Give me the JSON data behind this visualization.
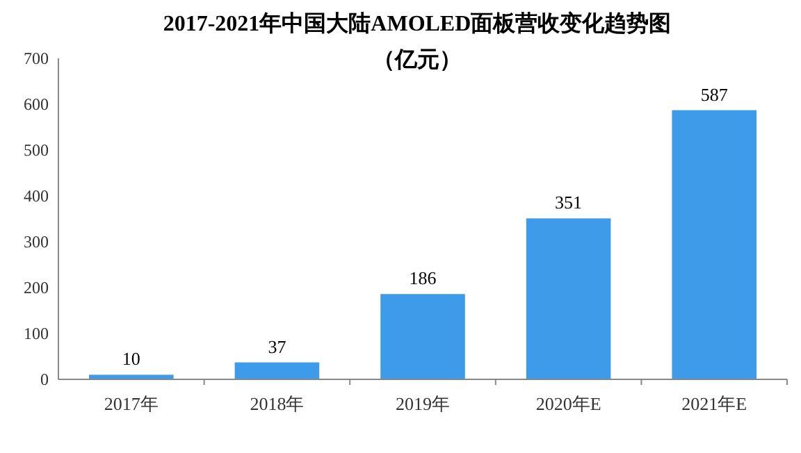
{
  "chart_data": {
    "type": "bar",
    "title": "2017-2021年中国大陆AMOLED面板营收变化趋势图",
    "subtitle": "（亿元）",
    "categories": [
      "2017年",
      "2018年",
      "2019年",
      "2020年E",
      "2021年E"
    ],
    "values": [
      10,
      37,
      186,
      351,
      587
    ],
    "color": "#3d9be9",
    "ylim": [
      0,
      700
    ],
    "yticks": [
      0,
      100,
      200,
      300,
      400,
      500,
      600,
      700
    ],
    "data_labels": true
  }
}
